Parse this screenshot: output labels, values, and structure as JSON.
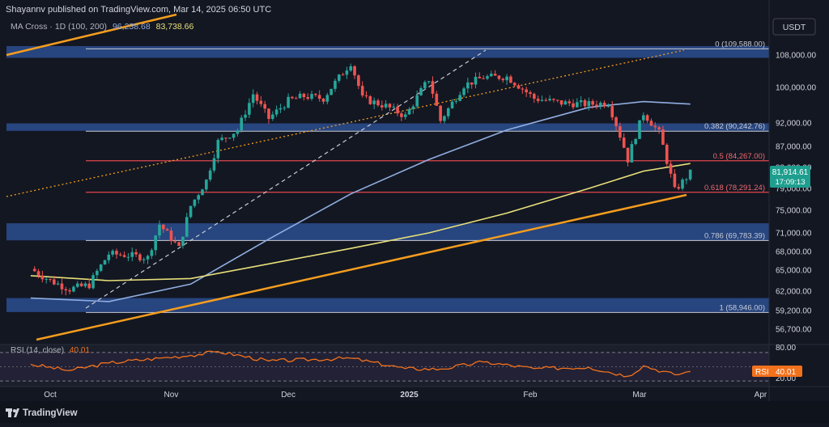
{
  "header": {
    "published_line": "Shayannv published on TradingView.com, Mar 14, 2025 06:50 UTC",
    "indicator_name": "MA Cross · 1D (100, 200)",
    "ma100_value": "96,238.68",
    "ma200_value": "83,738.66",
    "currency": "USDT"
  },
  "price_axis": {
    "labels": [
      "108,000.00",
      "100,000.00",
      "92,000.00",
      "87,000.00",
      "83,000.00",
      "79,000.00",
      "75,000.00",
      "71,000.00",
      "68,000.00",
      "65,000.00",
      "62,000.00",
      "59,200.00",
      "56,700.00"
    ],
    "current_price": "81,914.61",
    "countdown": "17:09:13"
  },
  "time_axis": {
    "labels": [
      "Oct",
      "Nov",
      "Dec",
      "2025",
      "Feb",
      "Mar",
      "Apr"
    ]
  },
  "fib_levels": [
    {
      "label": "0 (109,588.00)",
      "price": 109588
    },
    {
      "label": "0.382 (90,242.76)",
      "price": 90242.76
    },
    {
      "label": "0.5 (84,267.00)",
      "price": 84267
    },
    {
      "label": "0.618 (78,291.24)",
      "price": 78291.24
    },
    {
      "label": "0.786 (69,783.39)",
      "price": 69783.39
    },
    {
      "label": "1 (58,946.00)",
      "price": 58946
    }
  ],
  "rsi": {
    "title": "RSI (14, close)",
    "value": "40.01",
    "tag_label": "RSI",
    "levels": [
      "80.00",
      "20.00"
    ]
  },
  "footer": {
    "brand": "TradingView"
  },
  "colors": {
    "background": "#131722",
    "up": "#26a69a",
    "down": "#ef5350",
    "ma100": "#90aee0",
    "ma200": "#e8e07a",
    "trendline": "#f59d1e",
    "zone": "#2a4a8a",
    "fib_red": "#e0464e",
    "rsi_line": "#f2711c",
    "price_tag": "#1e9e8e"
  },
  "chart_data": {
    "type": "candlestick",
    "title": "",
    "x": [
      "Oct",
      "Nov",
      "Dec",
      "2025",
      "Feb",
      "Mar",
      "Apr"
    ],
    "ylim": [
      56000,
      112000
    ],
    "close_series": [
      {
        "date": "2024-09-26",
        "close": 65200
      },
      {
        "date": "2024-10-01",
        "close": 63500
      },
      {
        "date": "2024-10-06",
        "close": 62300
      },
      {
        "date": "2024-10-11",
        "close": 62900
      },
      {
        "date": "2024-10-16",
        "close": 67600
      },
      {
        "date": "2024-10-21",
        "close": 67400
      },
      {
        "date": "2024-10-26",
        "close": 67000
      },
      {
        "date": "2024-10-29",
        "close": 72500
      },
      {
        "date": "2024-11-03",
        "close": 68500
      },
      {
        "date": "2024-11-06",
        "close": 75800
      },
      {
        "date": "2024-11-10",
        "close": 80500
      },
      {
        "date": "2024-11-13",
        "close": 88000
      },
      {
        "date": "2024-11-18",
        "close": 90500
      },
      {
        "date": "2024-11-22",
        "close": 98500
      },
      {
        "date": "2024-11-26",
        "close": 93000
      },
      {
        "date": "2024-12-01",
        "close": 97000
      },
      {
        "date": "2024-12-05",
        "close": 98000
      },
      {
        "date": "2024-12-10",
        "close": 97500
      },
      {
        "date": "2024-12-17",
        "close": 106100
      },
      {
        "date": "2024-12-20",
        "close": 97500
      },
      {
        "date": "2024-12-26",
        "close": 95800
      },
      {
        "date": "2024-12-31",
        "close": 93500
      },
      {
        "date": "2025-01-06",
        "close": 102000
      },
      {
        "date": "2025-01-09",
        "close": 92500
      },
      {
        "date": "2025-01-15",
        "close": 100500
      },
      {
        "date": "2025-01-20",
        "close": 102500
      },
      {
        "date": "2025-01-26",
        "close": 102600
      },
      {
        "date": "2025-02-02",
        "close": 97500
      },
      {
        "date": "2025-02-09",
        "close": 96500
      },
      {
        "date": "2025-02-16",
        "close": 96200
      },
      {
        "date": "2025-02-21",
        "close": 96500
      },
      {
        "date": "2025-02-26",
        "close": 84500
      },
      {
        "date": "2025-03-02",
        "close": 94200
      },
      {
        "date": "2025-03-06",
        "close": 89900
      },
      {
        "date": "2025-03-10",
        "close": 78600
      },
      {
        "date": "2025-03-14",
        "close": 81914.61
      }
    ],
    "ma100_series": [
      {
        "date": "2024-09-26",
        "value": 61000
      },
      {
        "date": "2024-10-16",
        "value": 60500
      },
      {
        "date": "2024-11-06",
        "value": 63000
      },
      {
        "date": "2024-11-26",
        "value": 70000
      },
      {
        "date": "2024-12-17",
        "value": 78000
      },
      {
        "date": "2025-01-06",
        "value": 84500
      },
      {
        "date": "2025-01-26",
        "value": 90500
      },
      {
        "date": "2025-02-16",
        "value": 95500
      },
      {
        "date": "2025-03-02",
        "value": 96800
      },
      {
        "date": "2025-03-14",
        "value": 96238.68
      }
    ],
    "ma200_series": [
      {
        "date": "2024-09-26",
        "value": 64200
      },
      {
        "date": "2024-10-16",
        "value": 63500
      },
      {
        "date": "2024-11-06",
        "value": 63800
      },
      {
        "date": "2024-11-26",
        "value": 66000
      },
      {
        "date": "2024-12-17",
        "value": 68500
      },
      {
        "date": "2025-01-06",
        "value": 71000
      },
      {
        "date": "2025-01-26",
        "value": 74500
      },
      {
        "date": "2025-02-16",
        "value": 79000
      },
      {
        "date": "2025-03-02",
        "value": 82300
      },
      {
        "date": "2025-03-14",
        "value": 83738.66
      }
    ],
    "rsi_series": [
      {
        "date": "2024-09-26",
        "value": 55
      },
      {
        "date": "2024-10-06",
        "value": 42
      },
      {
        "date": "2024-10-16",
        "value": 58
      },
      {
        "date": "2024-10-29",
        "value": 68
      },
      {
        "date": "2024-11-06",
        "value": 74
      },
      {
        "date": "2024-11-13",
        "value": 82
      },
      {
        "date": "2024-11-26",
        "value": 62
      },
      {
        "date": "2024-12-17",
        "value": 68
      },
      {
        "date": "2024-12-31",
        "value": 46
      },
      {
        "date": "2025-01-09",
        "value": 45
      },
      {
        "date": "2025-01-20",
        "value": 60
      },
      {
        "date": "2025-02-02",
        "value": 46
      },
      {
        "date": "2025-02-16",
        "value": 49
      },
      {
        "date": "2025-02-26",
        "value": 30
      },
      {
        "date": "2025-03-02",
        "value": 52
      },
      {
        "date": "2025-03-10",
        "value": 33
      },
      {
        "date": "2025-03-14",
        "value": 40.01
      }
    ],
    "rsi_ylim": [
      15,
      90
    ]
  }
}
